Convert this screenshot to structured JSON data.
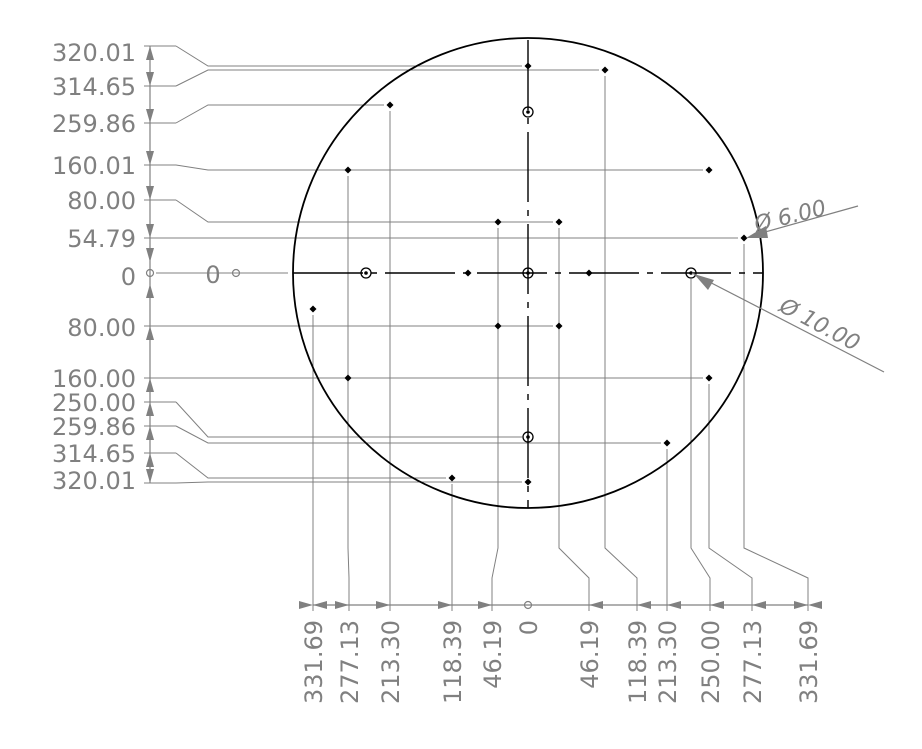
{
  "drawing": {
    "y_dimensions": [
      {
        "label": "320.01",
        "side": "top"
      },
      {
        "label": "314.65",
        "side": "top"
      },
      {
        "label": "259.86",
        "side": "top"
      },
      {
        "label": "160.01",
        "side": "top"
      },
      {
        "label": "80.00",
        "side": "top"
      },
      {
        "label": "54.79",
        "side": "top"
      },
      {
        "label": "0",
        "side": "origin"
      },
      {
        "label": "80.00",
        "side": "bottom"
      },
      {
        "label": "160.00",
        "side": "bottom"
      },
      {
        "label": "250.00",
        "side": "bottom"
      },
      {
        "label": "259.86",
        "side": "bottom"
      },
      {
        "label": "314.65",
        "side": "bottom"
      },
      {
        "label": "320.01",
        "side": "bottom"
      }
    ],
    "y_origin_label": "0",
    "x_dimensions": [
      {
        "label": "331.69",
        "side": "left"
      },
      {
        "label": "277.13",
        "side": "left"
      },
      {
        "label": "213.30",
        "side": "left"
      },
      {
        "label": "118.39",
        "side": "left"
      },
      {
        "label": "46.19",
        "side": "left"
      },
      {
        "label": "0",
        "side": "origin"
      },
      {
        "label": "46.19",
        "side": "right"
      },
      {
        "label": "118.39",
        "side": "right"
      },
      {
        "label": "213.30",
        "side": "right"
      },
      {
        "label": "250.00",
        "side": "right"
      },
      {
        "label": "277.13",
        "side": "right"
      },
      {
        "label": "331.69",
        "side": "right"
      }
    ],
    "callouts": {
      "small_hole": "6.00",
      "large_hole": "10.00",
      "diameter_symbol": "Ø"
    },
    "colors": {
      "dimension": "#808080",
      "geometry": "#000000",
      "background": "#ffffff"
    }
  }
}
